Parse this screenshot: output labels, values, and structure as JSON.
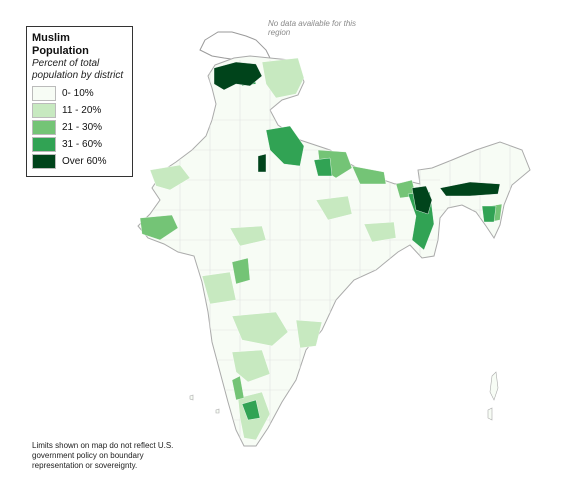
{
  "legend": {
    "title": "Muslim Population",
    "subtitle": "Percent of total population by district",
    "classes": [
      {
        "label": "0- 10%",
        "color": "#f7fcf5"
      },
      {
        "label": "11 - 20%",
        "color": "#c7e9c0"
      },
      {
        "label": "21 - 30%",
        "color": "#74c476"
      },
      {
        "label": "31 - 60%",
        "color": "#31a354"
      },
      {
        "label": "Over 60%",
        "color": "#00441b"
      }
    ]
  },
  "no_data_note": "No data available for this region",
  "disclaimer": "Limits shown on map do not reflect U.S. government policy on boundary representation or sovereignty.",
  "colors": {
    "no_data": "#ffffff",
    "border": "#aaaaaa",
    "district_line": "#e1e1e1"
  }
}
